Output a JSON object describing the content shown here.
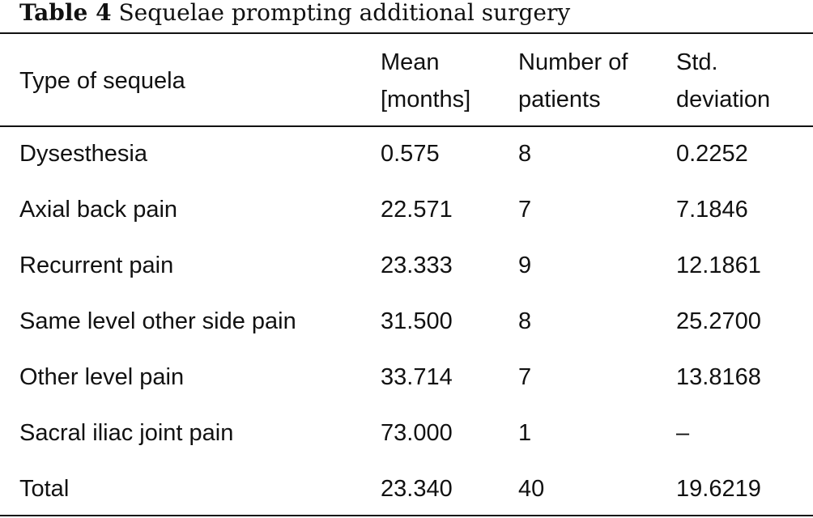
{
  "caption": {
    "label": "Table 4",
    "title": "Sequelae prompting additional surgery"
  },
  "table": {
    "headers": {
      "type": "Type of sequela",
      "mean_line1": "Mean",
      "mean_line2": "[months]",
      "number_line1": "Number of",
      "number_line2": "patients",
      "sd_line1": "Std.",
      "sd_line2": "deviation"
    },
    "rows": [
      {
        "type": "Dysesthesia",
        "mean": "0.575",
        "n": "8",
        "sd": "0.2252"
      },
      {
        "type": "Axial back pain",
        "mean": "22.571",
        "n": "7",
        "sd": "7.1846"
      },
      {
        "type": "Recurrent pain",
        "mean": "23.333",
        "n": "9",
        "sd": "12.1861"
      },
      {
        "type": "Same level other side pain",
        "mean": "31.500",
        "n": "8",
        "sd": "25.2700"
      },
      {
        "type": "Other level pain",
        "mean": "33.714",
        "n": "7",
        "sd": "13.8168"
      },
      {
        "type": "Sacral iliac joint pain",
        "mean": "73.000",
        "n": "1",
        "sd": "–"
      },
      {
        "type": "Total",
        "mean": "23.340",
        "n": "40",
        "sd": "19.6219"
      }
    ]
  }
}
